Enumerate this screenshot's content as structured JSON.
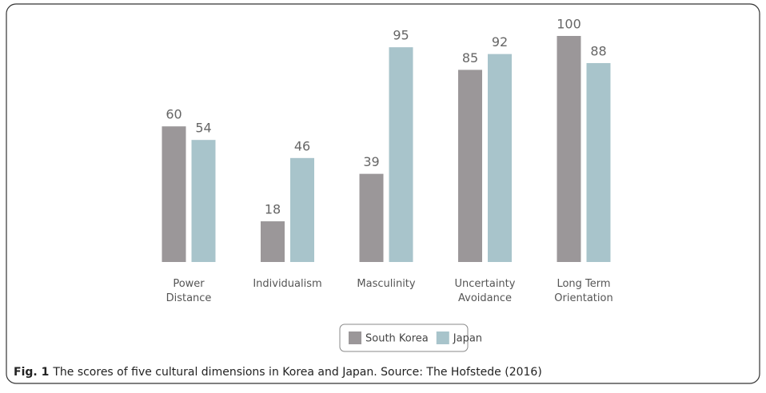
{
  "chart_data": {
    "type": "bar",
    "categories": [
      "Power\nDistance",
      "Individualism",
      "Masculinity",
      "Uncertainty\nAvoidance",
      "Long Term\nOrientation"
    ],
    "series": [
      {
        "name": "South Korea",
        "color": "#9b9799",
        "values": [
          60,
          18,
          39,
          85,
          100
        ]
      },
      {
        "name": "Japan",
        "color": "#a8c4cb",
        "values": [
          54,
          46,
          95,
          92,
          88
        ]
      }
    ],
    "legend": "bottom",
    "caption": {
      "label": "Fig. 1",
      "text": "The scores of five cultural dimensions in Korea and Japan. Source: The Hofstede (2016)"
    }
  }
}
